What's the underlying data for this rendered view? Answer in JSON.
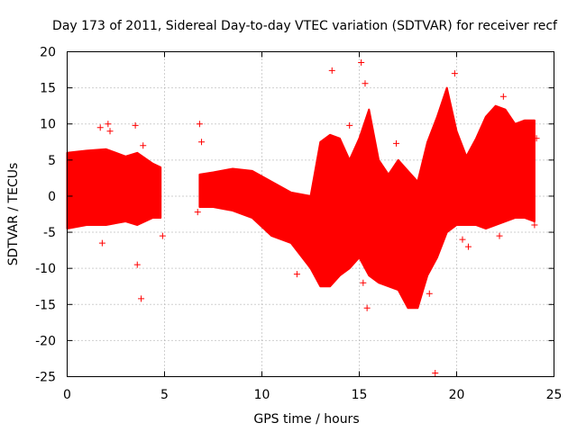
{
  "chart_data": {
    "type": "scatter",
    "title": "Day 173 of 2011, Sidereal Day-to-day VTEC variation (SDTVAR) for receiver recf",
    "xlabel": "GPS time / hours",
    "ylabel": "SDTVAR / TECUs",
    "xlim": [
      0,
      25
    ],
    "ylim": [
      -25,
      20
    ],
    "xticks": [
      0,
      5,
      10,
      15,
      20,
      25
    ],
    "yticks": [
      -25,
      -20,
      -15,
      -10,
      -5,
      0,
      5,
      10,
      15,
      20
    ],
    "grid": true,
    "marker": "plus",
    "color": "#ff0000",
    "band_series": [
      {
        "name": "segment-1",
        "points": [
          {
            "x": 0.0,
            "lo": -4.5,
            "hi": 6.0
          },
          {
            "x": 1.0,
            "lo": -4.0,
            "hi": 6.3
          },
          {
            "x": 2.0,
            "lo": -4.0,
            "hi": 6.5
          },
          {
            "x": 3.0,
            "lo": -3.5,
            "hi": 5.5
          },
          {
            "x": 3.6,
            "lo": -4.0,
            "hi": 6.0
          },
          {
            "x": 4.4,
            "lo": -3.0,
            "hi": 4.5
          },
          {
            "x": 4.8,
            "lo": -3.0,
            "hi": 4.0
          }
        ]
      },
      {
        "name": "segment-2",
        "points": [
          {
            "x": 6.8,
            "lo": -1.5,
            "hi": 3.0
          },
          {
            "x": 7.5,
            "lo": -1.5,
            "hi": 3.3
          },
          {
            "x": 8.5,
            "lo": -2.0,
            "hi": 3.8
          },
          {
            "x": 9.5,
            "lo": -3.0,
            "hi": 3.5
          },
          {
            "x": 10.5,
            "lo": -5.5,
            "hi": 2.0
          },
          {
            "x": 11.5,
            "lo": -6.5,
            "hi": 0.5
          },
          {
            "x": 12.5,
            "lo": -10.0,
            "hi": 0.0
          },
          {
            "x": 13.0,
            "lo": -12.5,
            "hi": 7.5
          },
          {
            "x": 13.5,
            "lo": -12.5,
            "hi": 8.5
          },
          {
            "x": 14.0,
            "lo": -11.0,
            "hi": 8.0
          },
          {
            "x": 14.5,
            "lo": -10.0,
            "hi": 5.0
          },
          {
            "x": 15.0,
            "lo": -8.5,
            "hi": 8.0
          },
          {
            "x": 15.5,
            "lo": -11.0,
            "hi": 12.0
          },
          {
            "x": 16.0,
            "lo": -12.0,
            "hi": 5.0
          },
          {
            "x": 16.5,
            "lo": -12.5,
            "hi": 3.0
          },
          {
            "x": 17.0,
            "lo": -13.0,
            "hi": 5.0
          },
          {
            "x": 17.5,
            "lo": -15.5,
            "hi": 3.5
          },
          {
            "x": 18.0,
            "lo": -15.5,
            "hi": 2.0
          },
          {
            "x": 18.5,
            "lo": -11.0,
            "hi": 7.5
          },
          {
            "x": 19.0,
            "lo": -8.5,
            "hi": 11.0
          },
          {
            "x": 19.5,
            "lo": -5.0,
            "hi": 15.0
          },
          {
            "x": 20.0,
            "lo": -4.0,
            "hi": 9.0
          },
          {
            "x": 20.5,
            "lo": -4.0,
            "hi": 5.5
          },
          {
            "x": 21.0,
            "lo": -4.0,
            "hi": 8.0
          },
          {
            "x": 21.5,
            "lo": -4.5,
            "hi": 11.0
          },
          {
            "x": 22.0,
            "lo": -4.0,
            "hi": 12.5
          },
          {
            "x": 22.5,
            "lo": -3.5,
            "hi": 12.0
          },
          {
            "x": 23.0,
            "lo": -3.0,
            "hi": 10.0
          },
          {
            "x": 23.5,
            "lo": -3.0,
            "hi": 10.5
          },
          {
            "x": 24.0,
            "lo": -3.5,
            "hi": 10.5
          }
        ]
      }
    ],
    "outliers": [
      {
        "x": 1.7,
        "y": 9.5
      },
      {
        "x": 2.1,
        "y": 10.0
      },
      {
        "x": 2.2,
        "y": 9.0
      },
      {
        "x": 1.8,
        "y": -6.5
      },
      {
        "x": 3.5,
        "y": 9.8
      },
      {
        "x": 3.6,
        "y": -9.5
      },
      {
        "x": 3.8,
        "y": -14.2
      },
      {
        "x": 3.9,
        "y": 7.0
      },
      {
        "x": 4.9,
        "y": -5.5
      },
      {
        "x": 6.8,
        "y": 10.0
      },
      {
        "x": 6.9,
        "y": 7.5
      },
      {
        "x": 6.7,
        "y": -2.2
      },
      {
        "x": 11.8,
        "y": -10.8
      },
      {
        "x": 13.6,
        "y": 17.4
      },
      {
        "x": 14.5,
        "y": 9.8
      },
      {
        "x": 15.1,
        "y": 18.5
      },
      {
        "x": 15.3,
        "y": 15.6
      },
      {
        "x": 15.2,
        "y": -12.0
      },
      {
        "x": 15.4,
        "y": -15.5
      },
      {
        "x": 16.9,
        "y": 7.3
      },
      {
        "x": 18.6,
        "y": -13.5
      },
      {
        "x": 18.9,
        "y": -24.5
      },
      {
        "x": 19.9,
        "y": 17.0
      },
      {
        "x": 20.6,
        "y": -7.0
      },
      {
        "x": 20.3,
        "y": -6.0
      },
      {
        "x": 22.4,
        "y": 13.8
      },
      {
        "x": 22.2,
        "y": -5.5
      },
      {
        "x": 24.1,
        "y": 8.0
      },
      {
        "x": 24.0,
        "y": -4.0
      }
    ]
  }
}
